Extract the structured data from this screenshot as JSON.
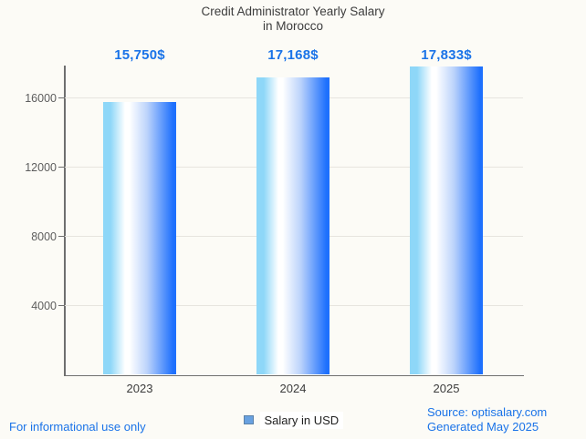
{
  "header": {
    "title_line1": "Credit Administrator Yearly Salary",
    "title_line2": "in Morocco"
  },
  "chart_data": {
    "type": "bar",
    "title": "Credit Administrator Yearly Salary in Morocco",
    "categories": [
      "2023",
      "2024",
      "2025"
    ],
    "series": [
      {
        "name": "Salary in USD",
        "values": [
          15750,
          17168,
          17833
        ]
      }
    ],
    "value_labels": [
      "15,750$",
      "17,168$",
      "17,833$"
    ],
    "xlabel": "",
    "ylabel": "",
    "yticks": [
      4000,
      8000,
      12000,
      16000
    ],
    "ylim": [
      0,
      17900
    ],
    "grid": true,
    "legend_position": "bottom"
  },
  "legend": {
    "label": "Salary in USD"
  },
  "footer": {
    "disclaimer": "For informational use only",
    "source": "Source: optisalary.com",
    "generated": "Generated May 2025"
  },
  "colors": {
    "accent": "#1a73e8",
    "title": "#3d3d3d",
    "axis": "#6f6f6f",
    "grid": "#e7e5df",
    "tick_label": "#5d5d5d",
    "x_label": "#3c3c3c",
    "background": "#fcfbf6",
    "bar_gradient": [
      "#8ed7f8",
      "#ffffff",
      "#bdd4fb",
      "#1e70fd"
    ],
    "legend_swatch_fill": "#68a1e0",
    "legend_swatch_border": "#5c82a8",
    "legend_text": "#1f1f1f"
  }
}
